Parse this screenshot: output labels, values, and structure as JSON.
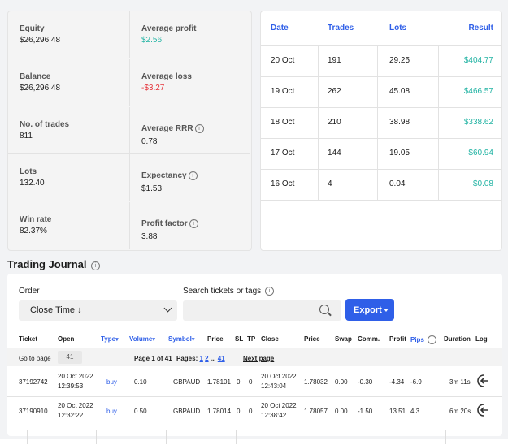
{
  "stats": {
    "cells": [
      {
        "label": "Equity",
        "value": "$26,296.48",
        "tone": ""
      },
      {
        "label": "Average profit",
        "value": "$2.56",
        "tone": "pos"
      },
      {
        "label": "Balance",
        "value": "$26,296.48",
        "tone": ""
      },
      {
        "label": "Average loss",
        "value": "-$3.27",
        "tone": "neg"
      },
      {
        "label": "No. of trades",
        "value": "811",
        "tone": ""
      },
      {
        "label": "Average RRR",
        "value": "0.78",
        "tone": "",
        "info": true
      },
      {
        "label": "Lots",
        "value": "132.40",
        "tone": ""
      },
      {
        "label": "Expectancy",
        "value": "$1.53",
        "tone": "",
        "info": true
      },
      {
        "label": "Win rate",
        "value": "82.37%",
        "tone": ""
      },
      {
        "label": "Profit factor",
        "value": "3.88",
        "tone": "",
        "info": true
      }
    ]
  },
  "daily": {
    "headers": {
      "date": "Date",
      "trades": "Trades",
      "lots": "Lots",
      "result": "Result"
    },
    "rows": [
      {
        "date": "20 Oct",
        "trades": "191",
        "lots": "29.25",
        "result": "$404.77"
      },
      {
        "date": "19 Oct",
        "trades": "262",
        "lots": "45.08",
        "result": "$466.57"
      },
      {
        "date": "18 Oct",
        "trades": "210",
        "lots": "38.98",
        "result": "$338.62"
      },
      {
        "date": "17 Oct",
        "trades": "144",
        "lots": "19.05",
        "result": "$60.94"
      },
      {
        "date": "16 Oct",
        "trades": "4",
        "lots": "0.04",
        "result": "$0.08"
      }
    ]
  },
  "journal": {
    "title": "Trading Journal",
    "order_label": "Order",
    "order_value": "Close Time ↓",
    "search_label": "Search tickets or tags",
    "search_placeholder": "",
    "export_label": "Export",
    "columns": {
      "ticket": "Ticket",
      "open": "Open",
      "type": "Type",
      "volume": "Volume",
      "symbol": "Symbol",
      "price": "Price",
      "sl": "SL",
      "tp": "TP",
      "close": "Close",
      "price2": "Price",
      "swap": "Swap",
      "comm": "Comm.",
      "profit": "Profit",
      "pips": "Pips",
      "duration": "Duration",
      "log": "Log"
    },
    "sort_glyph": "▾",
    "pagination": {
      "go_to_label": "Go to page",
      "go_to_value": "41",
      "page_info": "Page 1 of 41",
      "pages_label": "Pages:",
      "page_first": "1",
      "page_second": "2",
      "ellipsis": "...",
      "page_last": "41",
      "next_label": "Next page"
    },
    "rows": [
      {
        "ticket": "37192742",
        "open_date": "20 Oct 2022",
        "open_time": "12:39:53",
        "type": "buy",
        "volume": "0.10",
        "symbol": "GBPAUD",
        "price": "1.78101",
        "sl": "0",
        "tp": "0",
        "close_date": "20 Oct 2022",
        "close_time": "12:43:04",
        "close_price": "1.78032",
        "swap": "0.00",
        "comm": "-0.30",
        "profit": "-4.34",
        "profit_tone": "neg",
        "pips": "-6.9",
        "duration": "3m 11s"
      },
      {
        "ticket": "37190910",
        "open_date": "20 Oct 2022",
        "open_time": "12:32:22",
        "type": "buy",
        "volume": "0.50",
        "symbol": "GBPAUD",
        "price": "1.78014",
        "sl": "0",
        "tp": "0",
        "close_date": "20 Oct 2022",
        "close_time": "12:38:42",
        "close_price": "1.78057",
        "swap": "0.00",
        "comm": "-1.50",
        "profit": "13.51",
        "profit_tone": "pos",
        "pips": "4.3",
        "duration": "6m 20s"
      }
    ]
  },
  "colors": {
    "accent": "#2f5fe8",
    "positive": "#21b3a3",
    "negative": "#e5343b"
  },
  "icons": {
    "info": "info-icon",
    "log": "log-out-icon",
    "search": "search-icon"
  }
}
